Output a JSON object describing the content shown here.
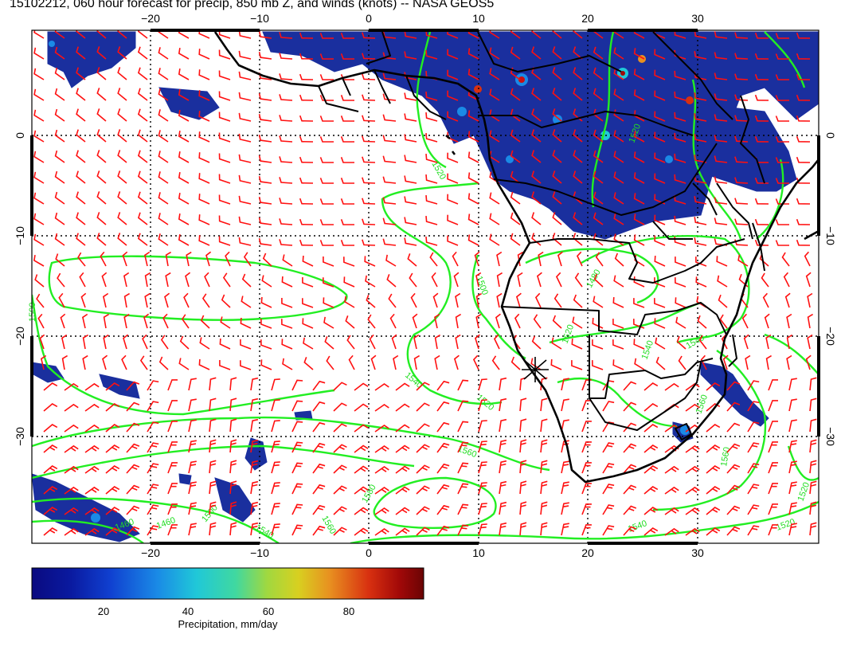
{
  "title": "15102212, 060 hour forecast for precip, 850 mb Z, and winds (knots) -- NASA GEOS5",
  "map": {
    "lon_range": [
      -30,
      41
    ],
    "lat_range": [
      -41,
      10
    ],
    "lon_ticks": [
      "−20",
      "−10",
      "0",
      "10",
      "20",
      "30"
    ],
    "lat_ticks": [
      "0",
      "−10",
      "−20",
      "−30"
    ],
    "contour_labels": [
      "1520",
      "1520",
      "1500",
      "1480",
      "1520",
      "1540",
      "1540",
      "1560",
      "1560",
      "1560",
      "1540",
      "1540",
      "1560",
      "1580",
      "1520",
      "1500",
      "1540",
      "1520",
      "1460",
      "1460",
      "1500",
      "1520"
    ],
    "colors": {
      "contour": "#22ee22",
      "wind_barb": "#ff1010",
      "precip_fill": "#1a2f9e",
      "precip_high": "#cc1010",
      "coast": "#000000"
    }
  },
  "colorbar": {
    "ticks": [
      "20",
      "40",
      "60",
      "80"
    ],
    "label": "Precipitation, mm/day",
    "colormap": [
      "#0a0a80",
      "#0a1aa0",
      "#1040d0",
      "#1a8ae6",
      "#20c8d8",
      "#40d8a0",
      "#a0d840",
      "#d8d020",
      "#e89020",
      "#d83010",
      "#a00808",
      "#6a0404"
    ]
  }
}
